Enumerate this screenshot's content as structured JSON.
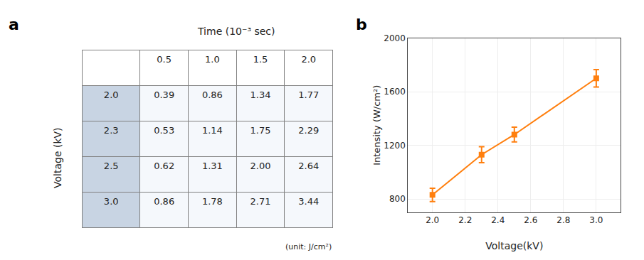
{
  "chart_data": [
    {
      "type": "table",
      "title": "Time (10⁻³ sec)",
      "ylabel": "Voltage (kV)",
      "columns": [
        "0.5",
        "1.0",
        "1.5",
        "2.0"
      ],
      "rows": [
        "2.0",
        "2.3",
        "2.5",
        "3.0"
      ],
      "values": [
        [
          0.39,
          0.86,
          1.34,
          1.77
        ],
        [
          0.53,
          1.14,
          1.75,
          2.29
        ],
        [
          0.62,
          1.31,
          2.0,
          2.64
        ],
        [
          0.86,
          1.78,
          2.71,
          3.44
        ]
      ],
      "value_labels": [
        [
          "0.39",
          "0.86",
          "1.34",
          "1.77"
        ],
        [
          "0.53",
          "1.14",
          "1.75",
          "2.29"
        ],
        [
          "0.62",
          "1.31",
          "2.00",
          "2.64"
        ],
        [
          "0.86",
          "1.78",
          "2.71",
          "3.44"
        ]
      ],
      "annotations": [
        "a",
        "(unit: J/cm²)"
      ]
    },
    {
      "type": "line",
      "x": [
        2.0,
        2.3,
        2.5,
        3.0
      ],
      "values": [
        830,
        1130,
        1280,
        1700
      ],
      "errors": [
        50,
        60,
        55,
        65
      ],
      "marker": "square",
      "xlabel": "Voltage(kV)",
      "ylabel": "Intensity (W/cm²)",
      "xlim": [
        1.85,
        3.15
      ],
      "ylim": [
        700,
        2000
      ],
      "xticks": [
        {
          "value": 2.0,
          "label": "2.0"
        },
        2.2,
        2.4,
        2.6,
        2.8,
        {
          "value": 3.0,
          "label": "3.0"
        }
      ],
      "yticks": [
        800,
        1200,
        1600,
        2000
      ],
      "annotations": [
        "b"
      ]
    }
  ]
}
